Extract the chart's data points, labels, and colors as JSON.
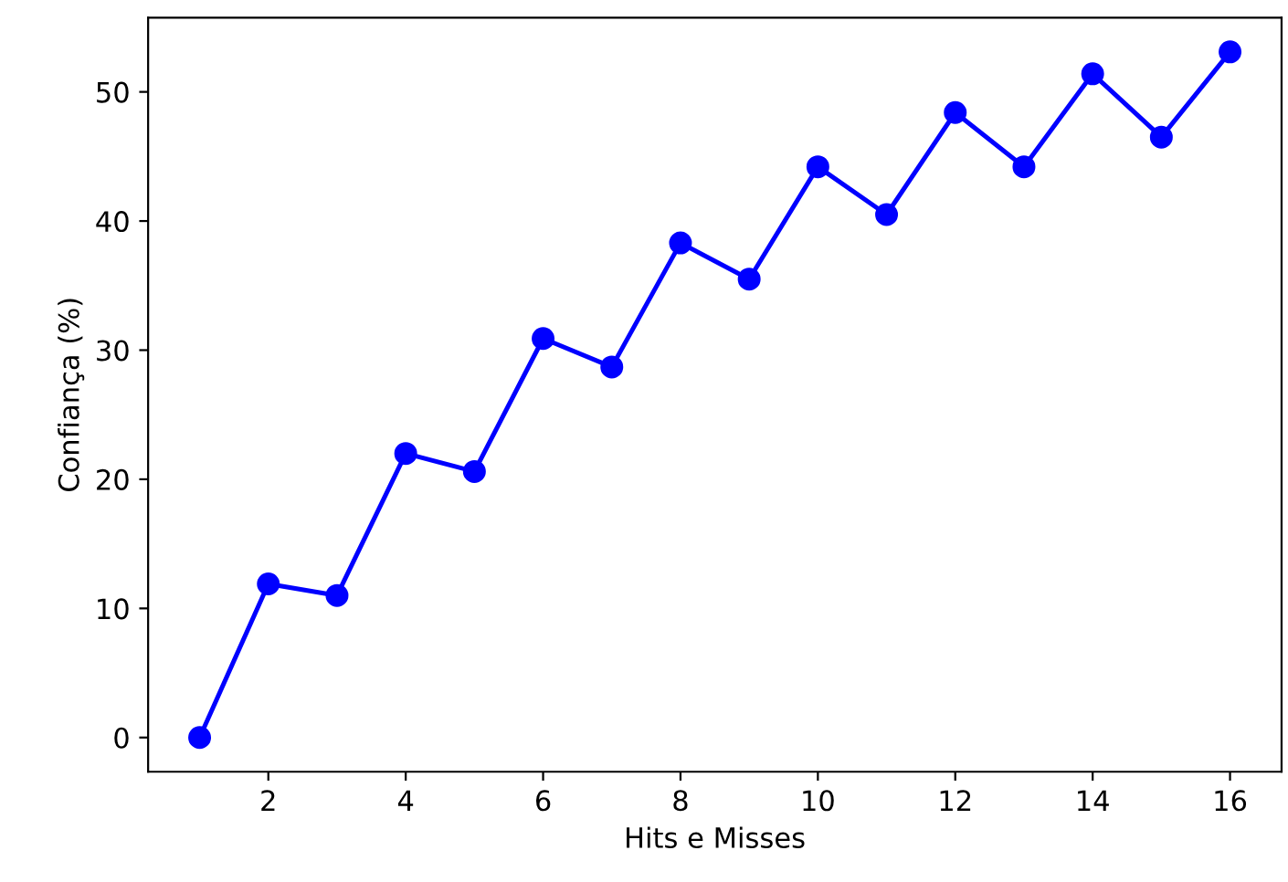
{
  "chart_data": {
    "type": "line",
    "xlabel": "Hits e Misses",
    "ylabel": "Confiança (%)",
    "x": [
      1,
      2,
      3,
      4,
      5,
      6,
      7,
      8,
      9,
      10,
      11,
      12,
      13,
      14,
      15,
      16
    ],
    "series": [
      {
        "color": "#0000ff",
        "values": [
          0,
          11.9,
          11.0,
          22.0,
          20.6,
          30.9,
          28.7,
          38.3,
          35.5,
          44.2,
          40.5,
          48.4,
          44.2,
          51.4,
          46.5,
          53.1
        ]
      }
    ],
    "xlim": [
      0.25,
      16.75
    ],
    "ylim": [
      -2.65,
      55.75
    ],
    "xticks": [
      2,
      4,
      6,
      8,
      10,
      12,
      14,
      16
    ],
    "yticks": [
      0,
      10,
      20,
      30,
      40,
      50
    ],
    "marker": "circle",
    "line_style": "solid",
    "grid": false,
    "legend": false
  }
}
